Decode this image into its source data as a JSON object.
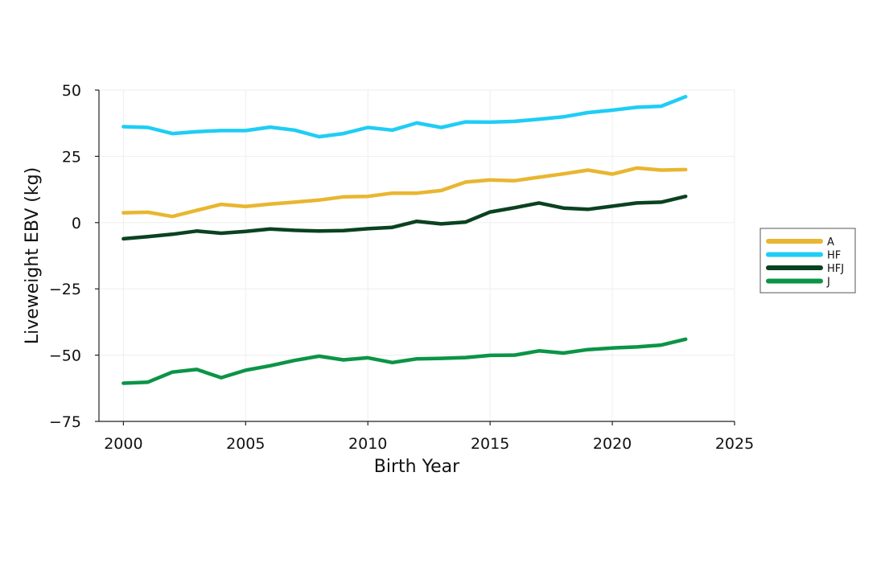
{
  "chart_data": {
    "type": "line",
    "title": "",
    "xlabel": "Birth Year",
    "ylabel": "Liveweight EBV (kg)",
    "xlim": [
      1999,
      2025
    ],
    "ylim": [
      -75,
      50
    ],
    "xticks": [
      2000,
      2005,
      2010,
      2015,
      2020,
      2025
    ],
    "yticks": [
      50,
      25,
      0,
      -25,
      -50,
      -75
    ],
    "xtick_labels": [
      "2000",
      "2005",
      "2010",
      "2015",
      "2020",
      "2025"
    ],
    "ytick_labels": [
      "50",
      "25",
      "0",
      "−25",
      "−50",
      "−75"
    ],
    "grid": true,
    "legend_position": "right",
    "x": [
      2000,
      2001,
      2002,
      2003,
      2004,
      2005,
      2006,
      2007,
      2008,
      2009,
      2010,
      2011,
      2012,
      2013,
      2014,
      2015,
      2016,
      2017,
      2018,
      2019,
      2020,
      2021,
      2022,
      2023
    ],
    "series": [
      {
        "name": "A",
        "color": "#E8B630",
        "values": [
          3.7,
          3.9,
          2.3,
          4.6,
          6.9,
          6.1,
          7.0,
          7.7,
          8.5,
          9.7,
          9.9,
          11.1,
          11.1,
          12.1,
          15.3,
          16.1,
          15.8,
          17.1,
          18.4,
          19.8,
          18.3,
          20.6,
          19.8,
          20.0
        ]
      },
      {
        "name": "HF",
        "color": "#1FCDF5",
        "values": [
          36.2,
          35.9,
          33.6,
          34.3,
          34.7,
          34.7,
          36.0,
          34.9,
          32.4,
          33.6,
          35.9,
          34.9,
          37.6,
          35.9,
          38.0,
          37.9,
          38.2,
          39.0,
          39.9,
          41.5,
          42.4,
          43.5,
          43.9,
          47.5
        ]
      },
      {
        "name": "HFJ",
        "color": "#0A4220",
        "values": [
          -6.1,
          -5.3,
          -4.4,
          -3.2,
          -4.0,
          -3.3,
          -2.4,
          -2.9,
          -3.2,
          -3.0,
          -2.3,
          -1.8,
          0.5,
          -0.5,
          0.2,
          4.0,
          5.6,
          7.4,
          5.5,
          5.0,
          6.2,
          7.4,
          7.7,
          9.9
        ]
      },
      {
        "name": "J",
        "color": "#0B9447",
        "values": [
          -60.6,
          -60.2,
          -56.4,
          -55.4,
          -58.5,
          -55.7,
          -54.0,
          -52.0,
          -50.4,
          -51.8,
          -51.0,
          -52.8,
          -51.4,
          -51.2,
          -50.9,
          -50.1,
          -50.0,
          -48.4,
          -49.2,
          -47.9,
          -47.3,
          -46.9,
          -46.2,
          -44.0
        ]
      }
    ]
  }
}
